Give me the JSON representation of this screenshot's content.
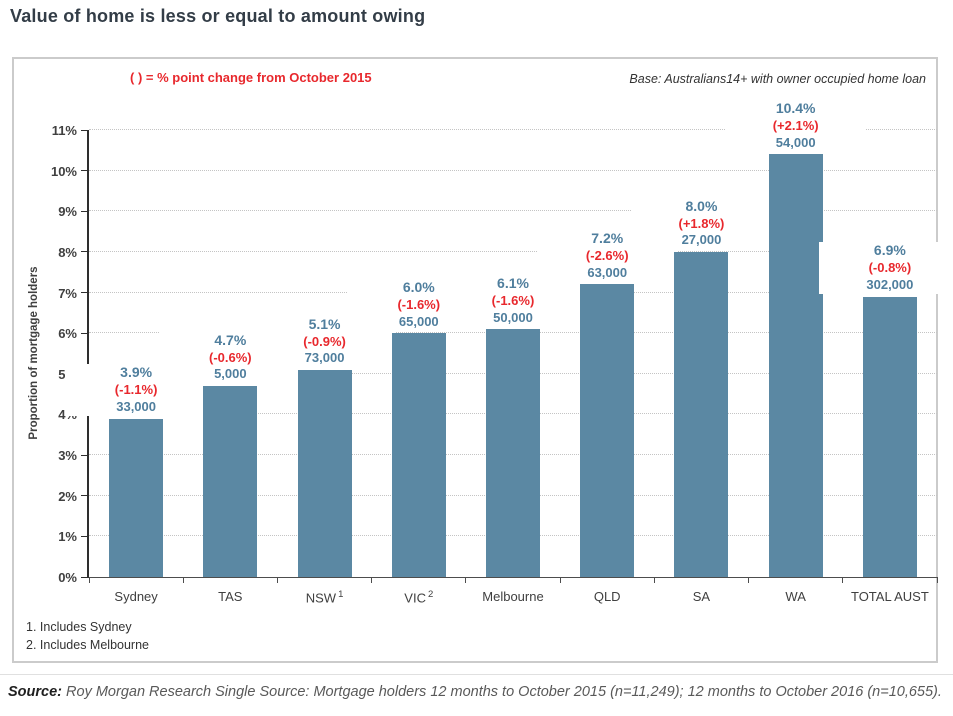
{
  "page": {
    "title": "Value of home is less or equal to amount owing"
  },
  "chart_data": {
    "type": "bar",
    "title": "Value of home is less or equal to amount owing",
    "note": "( ) = % point change from October 2015",
    "base_note": "Base: Australians14+ with owner occupied home loan",
    "ylabel": "Proportion of mortgage holders",
    "xlabel": "",
    "ylim": [
      0,
      11
    ],
    "ytick_step": 1,
    "ytick_suffix": "%",
    "grid": "dotted-horizontal",
    "legend_position": "none",
    "categories": [
      "Sydney",
      "TAS",
      "NSW",
      "VIC",
      "Melbourne",
      "QLD",
      "SA",
      "WA",
      "TOTAL AUST"
    ],
    "category_superscripts": [
      "",
      "",
      "1",
      "2",
      "",
      "",
      "",
      "",
      ""
    ],
    "values": [
      3.9,
      4.7,
      5.1,
      6.0,
      6.1,
      7.2,
      8.0,
      10.4,
      6.9
    ],
    "bar_labels": [
      {
        "pct": "3.9%",
        "change": "(-1.1%)",
        "count": "33,000"
      },
      {
        "pct": "4.7%",
        "change": "(-0.6%)",
        "count": "5,000"
      },
      {
        "pct": "5.1%",
        "change": "(-0.9%)",
        "count": "73,000"
      },
      {
        "pct": "6.0%",
        "change": "(-1.6%)",
        "count": "65,000"
      },
      {
        "pct": "6.1%",
        "change": "(-1.6%)",
        "count": "50,000"
      },
      {
        "pct": "7.2%",
        "change": "(-2.6%)",
        "count": "63,000"
      },
      {
        "pct": "8.0%",
        "change": "(+1.8%)",
        "count": "27,000"
      },
      {
        "pct": "10.4%",
        "change": "(+2.1%)",
        "count": "54,000"
      },
      {
        "pct": "6.9%",
        "change": "(-0.8%)",
        "count": "302,000"
      }
    ],
    "colors": {
      "bar": "#5b88a3",
      "value_text": "#4f7e9d",
      "change_text": "#e8282d",
      "axis_text": "#404040",
      "gridline": "#c4c4c4"
    }
  },
  "footnotes": [
    "1. Includes Sydney",
    "2. Includes Melbourne"
  ],
  "source": {
    "label": "Source:",
    "text": " Roy Morgan Research Single Source: Mortgage holders 12 months to October 2015 (n=11,249); 12 months to October 2016 (n=10,655)."
  }
}
